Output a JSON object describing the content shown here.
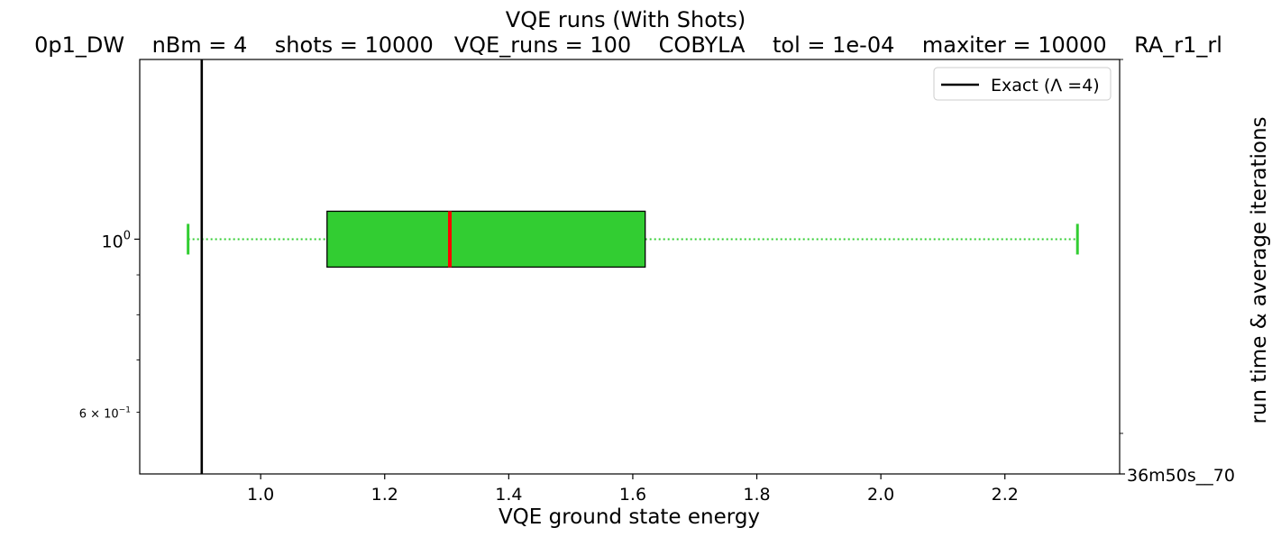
{
  "chart_data": {
    "type": "boxplot",
    "orientation": "horizontal",
    "title": "VQE runs (With Shots)",
    "subtitle": "0p1_DW    nBm = 4    shots = 10000   VQE_runs = 100    COBYLA    tol = 1e-04    maxiter = 10000    RA_r1_rl",
    "xlabel": "VQE ground state energy",
    "ylabel_right": "run time & average iterations",
    "xlim": [
      0.805,
      2.385
    ],
    "ylim_log": [
      0.5,
      1.7
    ],
    "y_scale": "log",
    "x_ticks": [
      1.0,
      1.2,
      1.4,
      1.6,
      1.8,
      2.0,
      2.2
    ],
    "x_tick_labels": [
      "1.0",
      "1.2",
      "1.4",
      "1.6",
      "1.8",
      "2.0",
      "2.2"
    ],
    "y_ticks": [
      {
        "value": 1.0,
        "label_base": "10",
        "label_exp": "0"
      },
      {
        "value": 0.6,
        "label_base": "6 × 10",
        "label_exp": "−1"
      }
    ],
    "y_minor_ticks": [
      0.7,
      0.8,
      0.9
    ],
    "right_tick_label": "36m50s__70",
    "box": {
      "position": 1.0,
      "whisker_low": 0.883,
      "q1": 1.107,
      "median": 1.305,
      "q3": 1.62,
      "whisker_high": 2.317,
      "face_color": "#32cd32",
      "median_color": "#ff0000",
      "whisker_color": "#32cd32"
    },
    "exact_line": {
      "value": 0.905,
      "color": "#000000",
      "label": "Exact (Λ =4)"
    },
    "legend": {
      "position": "top-right",
      "entries": [
        "Exact (Λ =4)"
      ]
    },
    "grid": false
  }
}
